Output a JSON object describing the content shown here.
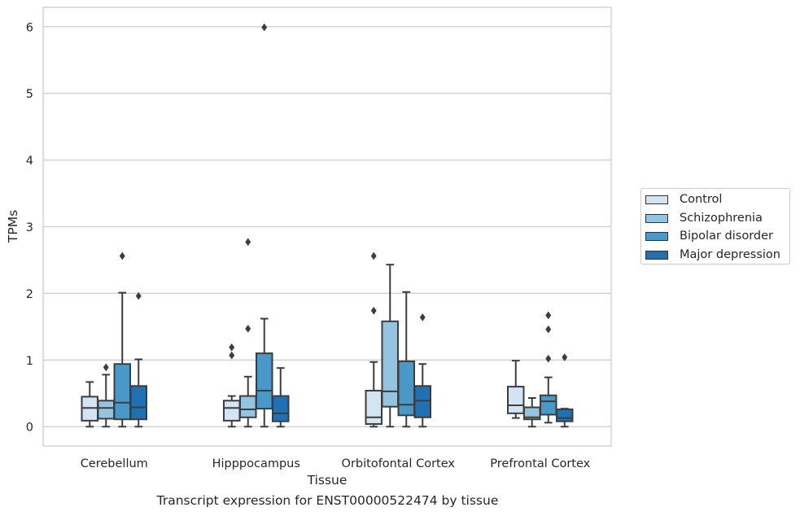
{
  "caption": "Transcript expression for ENST00000522474 by tissue",
  "chart_data": {
    "type": "box",
    "xlabel": "Tissue",
    "ylabel": "TPMs",
    "ylim": [
      -0.29,
      6.29
    ],
    "yticks": [
      0,
      1,
      2,
      3,
      4,
      5,
      6
    ],
    "grid": "horizontal",
    "legend_position": "right",
    "categories": [
      "Cerebellum",
      "Hipppocampus",
      "Orbitofontal Cortex",
      "Prefrontal Cortex"
    ],
    "series": [
      {
        "name": "Control",
        "color": "#d3e4f3",
        "boxes": [
          {
            "whislo": 0.0,
            "q1": 0.09,
            "med": 0.28,
            "q3": 0.45,
            "whishi": 0.67,
            "fliers": []
          },
          {
            "whislo": 0.0,
            "q1": 0.09,
            "med": 0.28,
            "q3": 0.39,
            "whishi": 0.46,
            "fliers": [
              1.07,
              1.19
            ]
          },
          {
            "whislo": 0.0,
            "q1": 0.04,
            "med": 0.14,
            "q3": 0.54,
            "whishi": 0.97,
            "fliers": [
              1.74,
              2.56
            ]
          },
          {
            "whislo": 0.13,
            "q1": 0.2,
            "med": 0.32,
            "q3": 0.6,
            "whishi": 0.99,
            "fliers": []
          }
        ]
      },
      {
        "name": "Schizophrenia",
        "color": "#94c4df",
        "boxes": [
          {
            "whislo": 0.0,
            "q1": 0.12,
            "med": 0.28,
            "q3": 0.39,
            "whishi": 0.78,
            "fliers": [
              0.89
            ]
          },
          {
            "whislo": 0.0,
            "q1": 0.14,
            "med": 0.26,
            "q3": 0.46,
            "whishi": 0.75,
            "fliers": [
              1.47,
              2.77
            ]
          },
          {
            "whislo": 0.0,
            "q1": 0.3,
            "med": 0.53,
            "q3": 1.58,
            "whishi": 2.43,
            "fliers": []
          },
          {
            "whislo": 0.0,
            "q1": 0.11,
            "med": 0.14,
            "q3": 0.29,
            "whishi": 0.43,
            "fliers": []
          }
        ]
      },
      {
        "name": "Bipolar disorder",
        "color": "#4a98c9",
        "boxes": [
          {
            "whislo": 0.0,
            "q1": 0.11,
            "med": 0.36,
            "q3": 0.94,
            "whishi": 2.01,
            "fliers": [
              2.56
            ]
          },
          {
            "whislo": 0.0,
            "q1": 0.27,
            "med": 0.54,
            "q3": 1.1,
            "whishi": 1.62,
            "fliers": [
              5.99
            ]
          },
          {
            "whislo": 0.0,
            "q1": 0.17,
            "med": 0.33,
            "q3": 0.98,
            "whishi": 2.02,
            "fliers": []
          },
          {
            "whislo": 0.06,
            "q1": 0.18,
            "med": 0.38,
            "q3": 0.47,
            "whishi": 0.74,
            "fliers": [
              1.02,
              1.46,
              1.67
            ]
          }
        ]
      },
      {
        "name": "Major depression",
        "color": "#2070b4",
        "boxes": [
          {
            "whislo": 0.0,
            "q1": 0.11,
            "med": 0.29,
            "q3": 0.61,
            "whishi": 1.01,
            "fliers": [
              1.96
            ]
          },
          {
            "whislo": 0.0,
            "q1": 0.08,
            "med": 0.2,
            "q3": 0.46,
            "whishi": 0.88,
            "fliers": []
          },
          {
            "whislo": 0.0,
            "q1": 0.14,
            "med": 0.39,
            "q3": 0.61,
            "whishi": 0.94,
            "fliers": [
              1.64
            ]
          },
          {
            "whislo": 0.0,
            "q1": 0.08,
            "med": 0.13,
            "q3": 0.26,
            "whishi": 0.27,
            "fliers": [
              1.04
            ]
          }
        ]
      }
    ]
  }
}
